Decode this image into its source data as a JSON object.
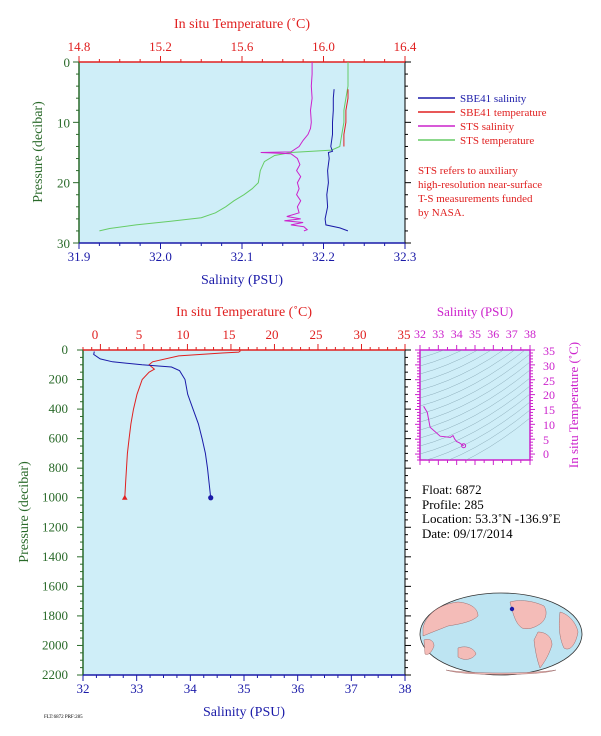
{
  "chart_data": [
    {
      "type": "line",
      "id": "upper",
      "title": "",
      "x_top_label": "In situ Temperature (˚C)",
      "x_top_ticks": [
        "14.8",
        "15.2",
        "15.6",
        "16.0",
        "16.4"
      ],
      "x_top_lim": [
        14.8,
        16.4
      ],
      "x_bottom_label": "Salinity (PSU)",
      "x_bottom_ticks": [
        "31.9",
        "32.0",
        "32.1",
        "32.2",
        "32.3"
      ],
      "x_bottom_lim": [
        31.9,
        32.3
      ],
      "y_label": "Pressure (decibar)",
      "y_ticks": [
        "0",
        "10",
        "20",
        "30"
      ],
      "y_lim": [
        0,
        30
      ],
      "y_inverted": true,
      "background": "#cfeef8",
      "legend": [
        {
          "label": "SBE41 salinity",
          "color": "#1a1aa8"
        },
        {
          "label": "SBE41 temperature",
          "color": "#e02020"
        },
        {
          "label": "STS salinity",
          "color": "#cc22cc"
        },
        {
          "label": "STS temperature",
          "color": "#66cc66"
        }
      ],
      "note": [
        "STS refers to auxiliary",
        "high-resolution near-surface",
        "T-S measurements funded",
        "by NASA."
      ],
      "series": [
        {
          "name": "SBE41 salinity",
          "axis": "salinity",
          "color": "#1a1aa8",
          "points": [
            [
              32.213,
              4.5
            ],
            [
              32.212,
              6
            ],
            [
              32.212,
              8
            ],
            [
              32.211,
              10
            ],
            [
              32.211,
              12
            ],
            [
              32.209,
              14
            ],
            [
              32.211,
              14.8
            ],
            [
              32.206,
              15
            ],
            [
              32.207,
              16
            ],
            [
              32.205,
              18
            ],
            [
              32.206,
              20
            ],
            [
              32.204,
              22
            ],
            [
              32.205,
              24
            ],
            [
              32.202,
              26
            ],
            [
              32.203,
              27
            ],
            [
              32.22,
              27.5
            ],
            [
              32.23,
              28
            ]
          ]
        },
        {
          "name": "SBE41 temperature",
          "axis": "temperature",
          "color": "#e02020",
          "points": [
            [
              16.12,
              4.5
            ],
            [
              16.12,
              6
            ],
            [
              16.11,
              8
            ],
            [
              16.11,
              10
            ],
            [
              16.1,
              12
            ],
            [
              16.1,
              14
            ]
          ]
        },
        {
          "name": "STS salinity",
          "axis": "salinity",
          "color": "#cc22cc",
          "points": [
            [
              32.186,
              0
            ],
            [
              32.186,
              2
            ],
            [
              32.185,
              4
            ],
            [
              32.186,
              6
            ],
            [
              32.184,
              8
            ],
            [
              32.185,
              10
            ],
            [
              32.184,
              11
            ],
            [
              32.181,
              12
            ],
            [
              32.175,
              13
            ],
            [
              32.17,
              14
            ],
            [
              32.16,
              14.9
            ],
            [
              32.123,
              15
            ],
            [
              32.16,
              15.2
            ],
            [
              32.168,
              16
            ],
            [
              32.171,
              17
            ],
            [
              32.167,
              18
            ],
            [
              32.172,
              19
            ],
            [
              32.168,
              20
            ],
            [
              32.17,
              21
            ],
            [
              32.167,
              22
            ],
            [
              32.172,
              23
            ],
            [
              32.168,
              24
            ],
            [
              32.17,
              25
            ],
            [
              32.155,
              25.6
            ],
            [
              32.172,
              26
            ],
            [
              32.152,
              26.3
            ],
            [
              32.175,
              26.6
            ],
            [
              32.16,
              27
            ],
            [
              32.176,
              27.3
            ],
            [
              32.18,
              27.8
            ],
            [
              32.176,
              28
            ]
          ]
        },
        {
          "name": "STS temperature",
          "axis": "temperature",
          "color": "#66cc66",
          "points": [
            [
              16.12,
              0
            ],
            [
              16.12,
              2
            ],
            [
              16.12,
              4
            ],
            [
              16.11,
              6
            ],
            [
              16.1,
              8
            ],
            [
              16.1,
              10
            ],
            [
              16.09,
              12
            ],
            [
              16.08,
              14
            ],
            [
              16.04,
              14.6
            ],
            [
              15.84,
              15
            ],
            [
              15.76,
              15.5
            ],
            [
              15.71,
              16.5
            ],
            [
              15.69,
              18
            ],
            [
              15.68,
              20
            ],
            [
              15.65,
              21
            ],
            [
              15.61,
              22
            ],
            [
              15.56,
              23
            ],
            [
              15.52,
              24
            ],
            [
              15.47,
              25
            ],
            [
              15.4,
              25.8
            ],
            [
              15.25,
              26.4
            ],
            [
              15.08,
              27
            ],
            [
              14.95,
              27.6
            ],
            [
              14.9,
              28
            ]
          ]
        }
      ]
    },
    {
      "type": "line",
      "id": "lower",
      "title": "",
      "x_top_label": "In situ Temperature (˚C)",
      "x_top_ticks": [
        "0",
        "5",
        "10",
        "15",
        "20",
        "25",
        "30",
        "35"
      ],
      "x_top_lim": [
        -2,
        35
      ],
      "x_bottom_label": "Salinity (PSU)",
      "x_bottom_ticks": [
        "32",
        "33",
        "34",
        "35",
        "36",
        "37",
        "38"
      ],
      "x_bottom_lim": [
        32,
        38
      ],
      "y_label": "Pressure (decibar)",
      "y_ticks": [
        "0",
        "200",
        "400",
        "600",
        "800",
        "1000",
        "1200",
        "1400",
        "1600",
        "1800",
        "2000",
        "2200"
      ],
      "y_lim": [
        0,
        2200
      ],
      "y_inverted": true,
      "background": "#cfeef8",
      "series": [
        {
          "name": "",
          "axis": "salinity",
          "color": "#1a1aa8",
          "points": [
            [
              32.21,
              10
            ],
            [
              32.2,
              30
            ],
            [
              32.32,
              60
            ],
            [
              32.55,
              80
            ],
            [
              33.1,
              100
            ],
            [
              33.65,
              115
            ],
            [
              33.8,
              140
            ],
            [
              33.85,
              170
            ],
            [
              33.9,
              200
            ],
            [
              33.95,
              300
            ],
            [
              34.05,
              400
            ],
            [
              34.15,
              500
            ],
            [
              34.22,
              600
            ],
            [
              34.28,
              700
            ],
            [
              34.32,
              800
            ],
            [
              34.35,
              900
            ],
            [
              34.38,
              1000
            ]
          ]
        },
        {
          "name": "",
          "axis": "temperature",
          "color": "#e02020",
          "points": [
            [
              16.1,
              5
            ],
            [
              15.9,
              14
            ],
            [
              14,
              20
            ],
            [
              9,
              40
            ],
            [
              6,
              80
            ],
            [
              5.6,
              100
            ],
            [
              6.2,
              130
            ],
            [
              5.6,
              150
            ],
            [
              4.8,
              200
            ],
            [
              4.2,
              300
            ],
            [
              3.8,
              400
            ],
            [
              3.5,
              500
            ],
            [
              3.3,
              600
            ],
            [
              3.1,
              700
            ],
            [
              3.0,
              800
            ],
            [
              2.9,
              900
            ],
            [
              2.8,
              1000
            ]
          ]
        }
      ]
    },
    {
      "type": "scatter",
      "id": "ts-inset",
      "x_label": "Salinity (PSU)",
      "x_ticks": [
        "32",
        "33",
        "34",
        "35",
        "36",
        "37",
        "38"
      ],
      "x_lim": [
        32,
        38
      ],
      "y_label": "In situ Temperature (˚C)",
      "y_ticks": [
        "0",
        "5",
        "10",
        "15",
        "20",
        "25",
        "30",
        "35"
      ],
      "y_lim": [
        -2,
        35
      ],
      "isopycnals": true,
      "series": [
        {
          "name": "",
          "color": "#cc22cc",
          "points": [
            [
              32.2,
              16.1
            ],
            [
              32.21,
              15.9
            ],
            [
              32.4,
              14.0
            ],
            [
              32.55,
              9.0
            ],
            [
              33.1,
              6.0
            ],
            [
              33.65,
              5.6
            ],
            [
              33.8,
              6.2
            ],
            [
              33.9,
              5.0
            ],
            [
              34.0,
              4.2
            ],
            [
              34.15,
              3.8
            ],
            [
              34.3,
              3.1
            ],
            [
              34.38,
              2.8
            ]
          ]
        }
      ]
    }
  ],
  "info": {
    "float_line": "Float:  6872",
    "profile_line": "Profile:  285",
    "location_line": "Location:  53.3˚N  -136.9˚E",
    "date_line": "Date:  09/17/2014"
  },
  "footer_stamp": "FLT:6872 PRF:285",
  "map": {
    "marker_color": "#1a1aa8",
    "land_color": "#f4bcb8",
    "ocean_color": "#bde4f2"
  },
  "colors": {
    "temperature": "#e02020",
    "salinity": "#1a1aa8",
    "sts_salinity": "#cc22cc",
    "sts_temperature": "#66cc66",
    "pressure": "#2a6a2a",
    "panel_bg": "#cfeef8"
  }
}
